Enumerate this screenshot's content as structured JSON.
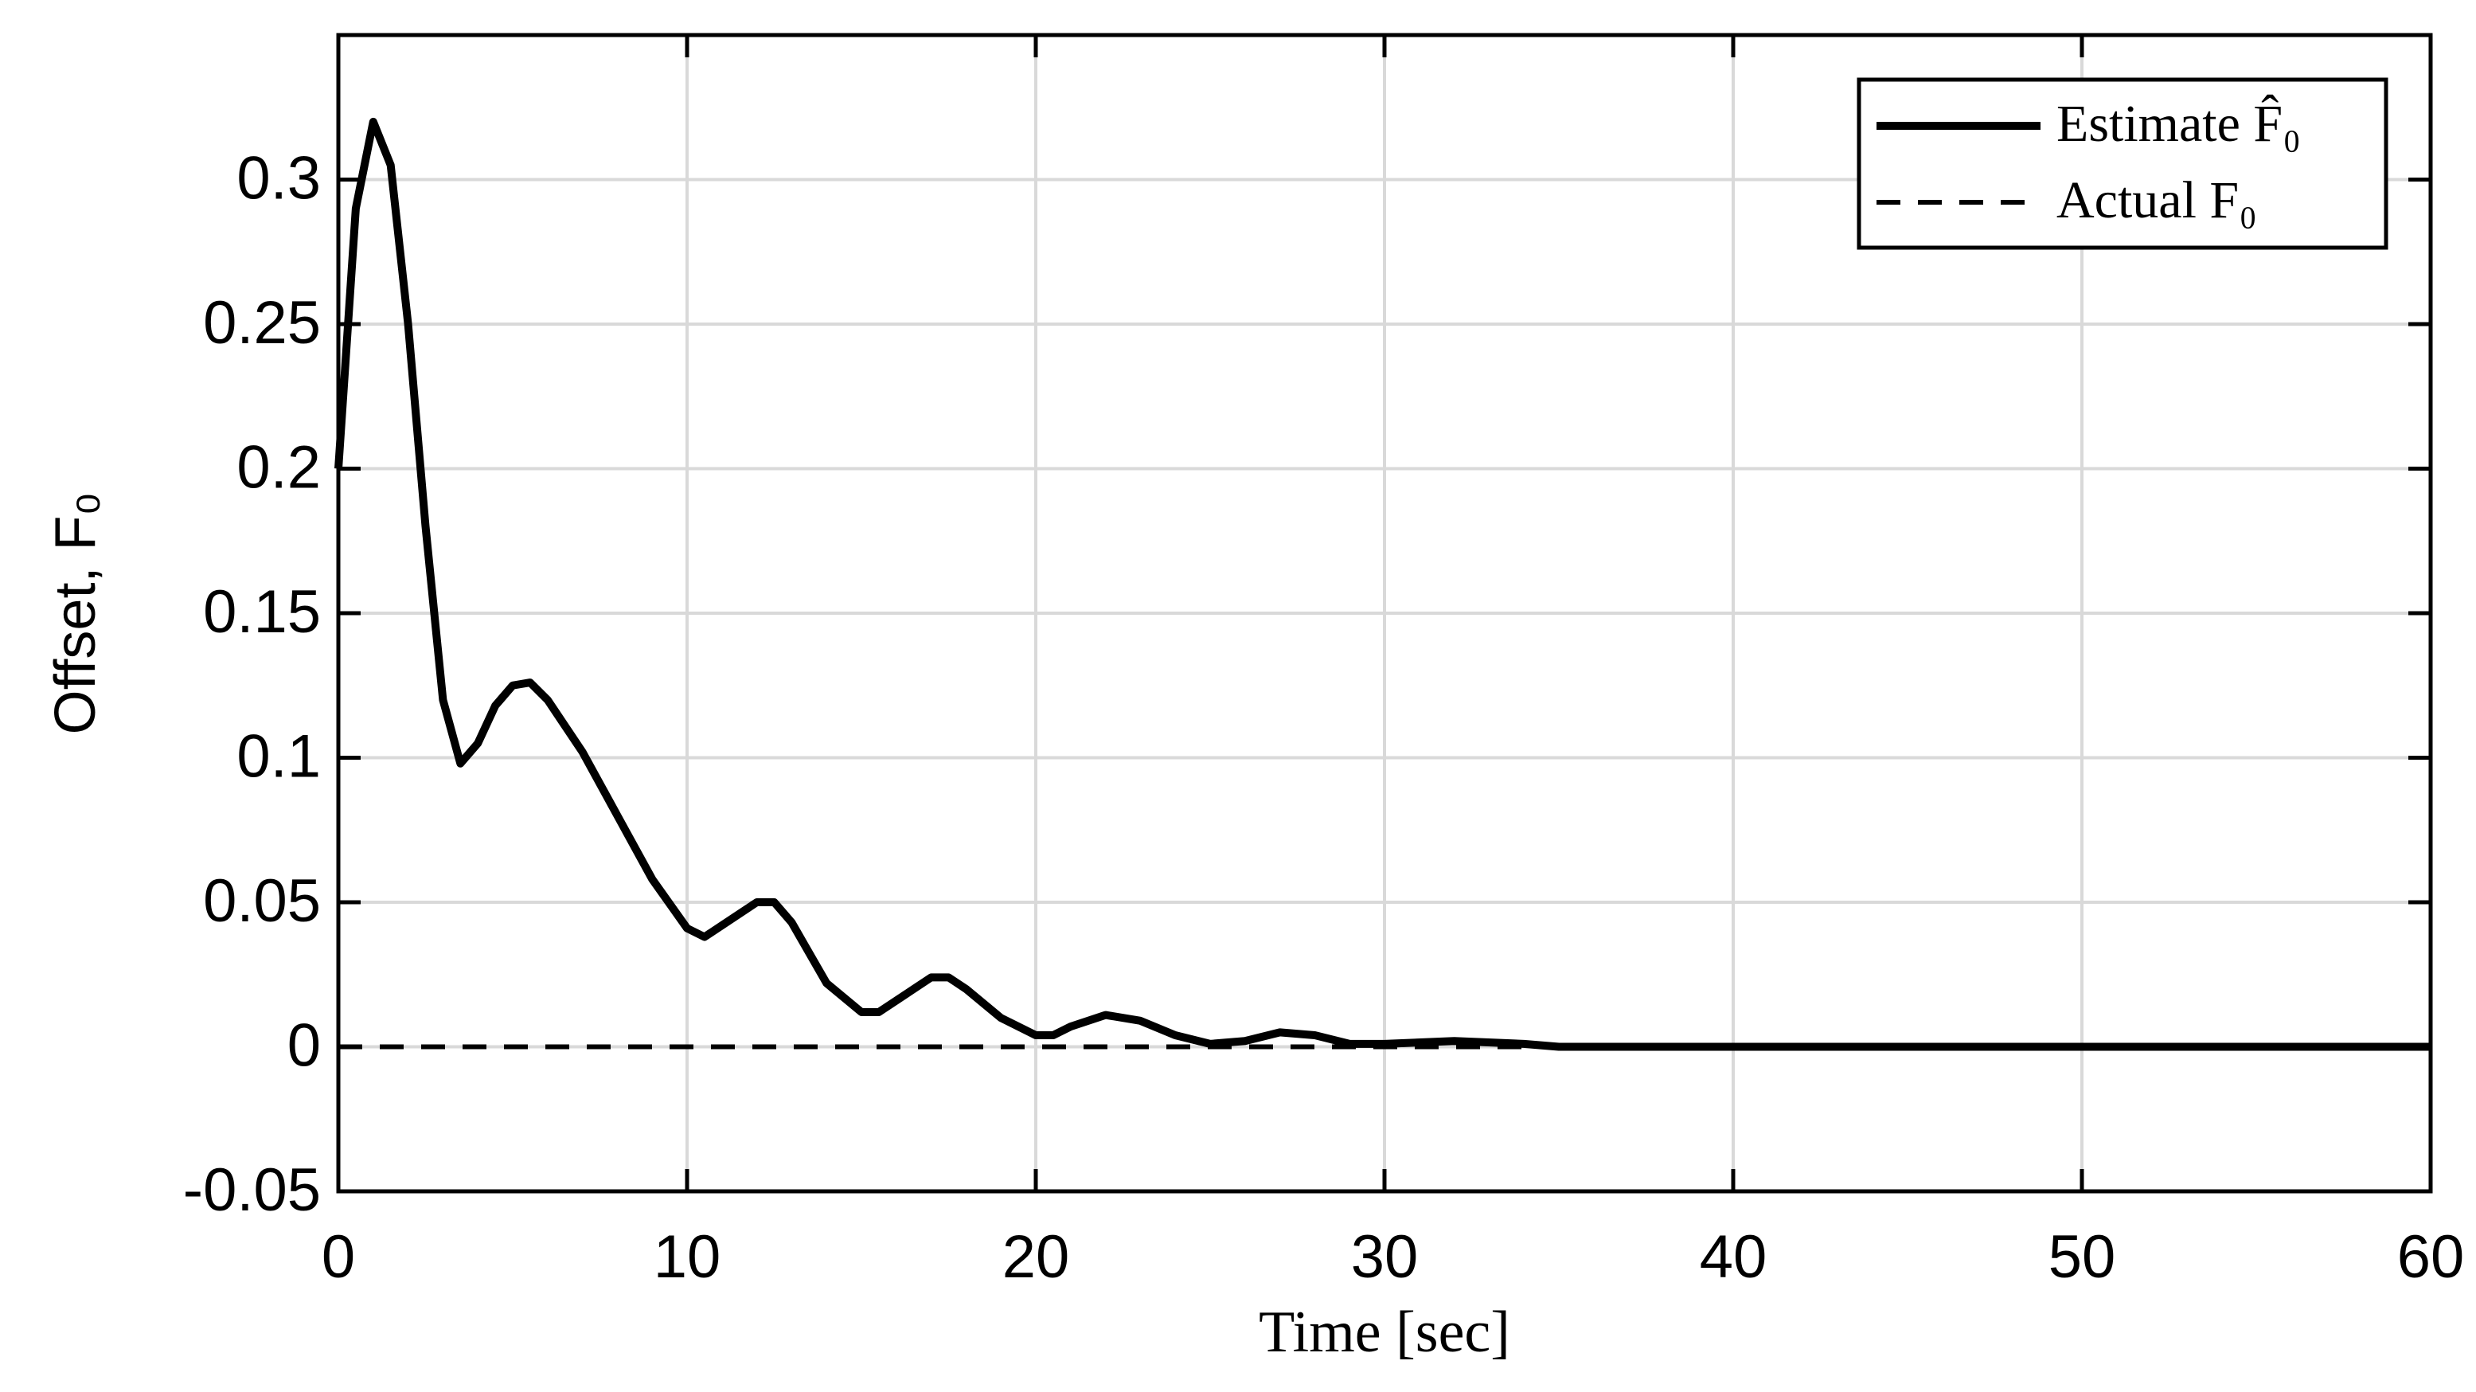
{
  "chart_data": {
    "type": "line",
    "xlabel": "Time [sec]",
    "ylabel": "Offset, F₀",
    "xlim": [
      0,
      60
    ],
    "xticks": [
      0,
      10,
      20,
      30,
      40,
      50,
      60
    ],
    "ylim": [
      -0.05,
      0.35
    ],
    "yticks": [
      -0.05,
      0,
      0.05,
      0.1,
      0.15,
      0.2,
      0.25,
      0.3
    ],
    "grid": true,
    "legend": "upper right",
    "series": [
      {
        "name": "Estimate F̂₀",
        "color": "#000000",
        "style": "solid",
        "x": [
          0,
          0.5,
          1,
          1.5,
          2,
          2.5,
          3,
          3.5,
          4,
          4.5,
          5,
          5.5,
          6,
          7,
          8,
          9,
          10,
          10.5,
          11,
          12,
          12.5,
          13,
          14,
          15,
          15.5,
          16,
          17,
          17.5,
          18,
          19,
          20,
          20.5,
          21,
          22,
          23,
          24,
          25,
          26,
          27,
          28,
          29,
          30,
          32,
          34,
          35,
          40,
          50,
          60
        ],
        "values": [
          0.2,
          0.29,
          0.32,
          0.305,
          0.25,
          0.18,
          0.12,
          0.098,
          0.105,
          0.118,
          0.125,
          0.126,
          0.12,
          0.102,
          0.08,
          0.058,
          0.041,
          0.038,
          0.042,
          0.05,
          0.05,
          0.043,
          0.022,
          0.012,
          0.012,
          0.016,
          0.024,
          0.024,
          0.02,
          0.01,
          0.004,
          0.004,
          0.007,
          0.011,
          0.009,
          0.004,
          0.001,
          0.002,
          0.005,
          0.004,
          0.001,
          0.001,
          0.002,
          0.001,
          0,
          0,
          0,
          0
        ]
      },
      {
        "name": "Actual F₀",
        "color": "#000000",
        "style": "dashed",
        "x": [
          0,
          60
        ],
        "values": [
          0,
          0
        ]
      }
    ]
  }
}
